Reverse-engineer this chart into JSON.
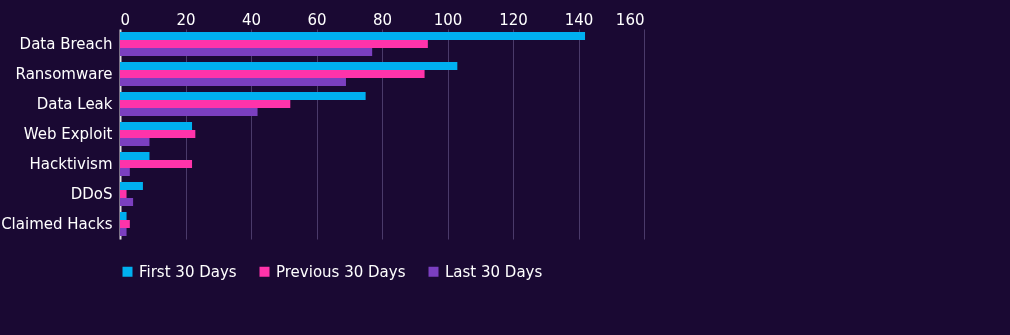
{
  "chart_data": {
    "type": "bar",
    "orientation": "horizontal",
    "categories": [
      "Data Breach",
      "Ransomware",
      "Data Leak",
      "Web Exploit",
      "Hacktivism",
      "DDoS",
      "Claimed Hacks"
    ],
    "series": [
      {
        "name": "First 30 Days",
        "color": "#00b0f0",
        "values": [
          142,
          103,
          75,
          22,
          9,
          7,
          2
        ]
      },
      {
        "name": "Previous 30 Days",
        "color": "#ff33aa",
        "values": [
          94,
          93,
          52,
          23,
          22,
          2,
          3
        ]
      },
      {
        "name": "Last 30 Days",
        "color": "#7b3fc0",
        "values": [
          77,
          69,
          42,
          9,
          3,
          4,
          2
        ]
      }
    ],
    "xlim": [
      0,
      160
    ],
    "xticks": [
      0,
      20,
      40,
      60,
      80,
      100,
      120,
      140,
      160
    ],
    "grid": "x",
    "legend": "bottom"
  }
}
